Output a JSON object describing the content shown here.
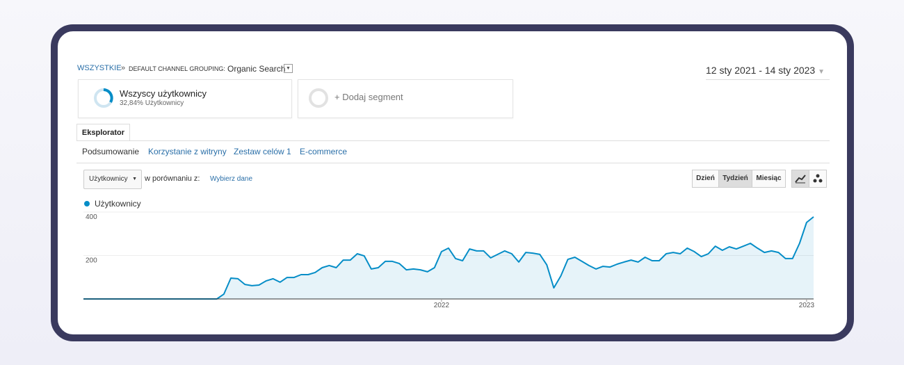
{
  "breadcrumb": {
    "root": "WSZYSTKIE",
    "separator": "»",
    "dimension": "DEFAULT CHANNEL GROUPING:",
    "value": "Organic Search"
  },
  "date_range": "12 sty 2021 - 14 sty 2023",
  "segments": [
    {
      "title": "Wszyscy użytkownicy",
      "subtitle": "32,84% Użytkownicy"
    },
    {
      "title": "+ Dodaj segment"
    }
  ],
  "tab": "Eksplorator",
  "subtabs": [
    "Podsumowanie",
    "Korzystanie z witryny",
    "Zestaw celów 1",
    "E-commerce"
  ],
  "controls": {
    "metric": "Użytkownicy",
    "compare": "w porównaniu z:",
    "pick": "Wybierz dane",
    "periods": [
      "Dzień",
      "Tydzień",
      "Miesiąc"
    ]
  },
  "chart_data": {
    "type": "area",
    "categories": [
      null,
      null,
      null,
      null,
      null,
      null,
      null,
      null,
      null,
      null,
      null,
      null,
      null,
      null,
      null,
      null,
      null,
      null,
      null,
      null,
      null,
      null,
      null,
      null,
      null,
      null,
      null,
      null,
      null,
      null,
      null,
      null,
      null,
      null,
      null,
      null,
      null,
      null,
      null,
      null,
      null,
      null,
      null,
      null,
      null,
      null,
      null,
      null,
      null,
      null,
      null,
      "2022",
      null,
      null,
      null,
      null,
      null,
      null,
      null,
      null,
      null,
      null,
      null,
      null,
      null,
      null,
      null,
      null,
      null,
      null,
      null,
      null,
      null,
      null,
      null,
      null,
      null,
      null,
      null,
      null,
      null,
      null,
      null,
      null,
      null,
      null,
      null,
      null,
      null,
      null,
      null,
      null,
      null,
      null,
      null,
      null,
      null,
      null,
      null,
      null,
      null,
      null,
      null,
      "2023",
      null
    ],
    "series": [
      {
        "name": "Użytkownicy",
        "color": "#058dc7",
        "values": [
          0,
          0,
          0,
          0,
          0,
          0,
          0,
          0,
          0,
          0,
          0,
          0,
          0,
          0,
          0,
          0,
          0,
          0,
          0,
          0,
          22,
          96,
          93,
          67,
          61,
          64,
          83,
          93,
          77,
          99,
          99,
          112,
          112,
          122,
          144,
          154,
          144,
          179,
          179,
          208,
          198,
          138,
          144,
          173,
          173,
          163,
          134,
          138,
          134,
          125,
          144,
          218,
          234,
          186,
          176,
          230,
          221,
          221,
          189,
          205,
          221,
          208,
          170,
          214,
          211,
          205,
          157,
          51,
          106,
          182,
          192,
          173,
          154,
          138,
          150,
          147,
          160,
          170,
          179,
          170,
          192,
          176,
          176,
          208,
          214,
          208,
          234,
          218,
          195,
          208,
          243,
          224,
          240,
          230,
          243,
          256,
          234,
          214,
          221,
          214,
          186,
          186,
          256,
          352,
          378
        ]
      }
    ],
    "ylim": [
      0,
      400
    ],
    "yticks": [
      200,
      400
    ],
    "grid": true
  }
}
